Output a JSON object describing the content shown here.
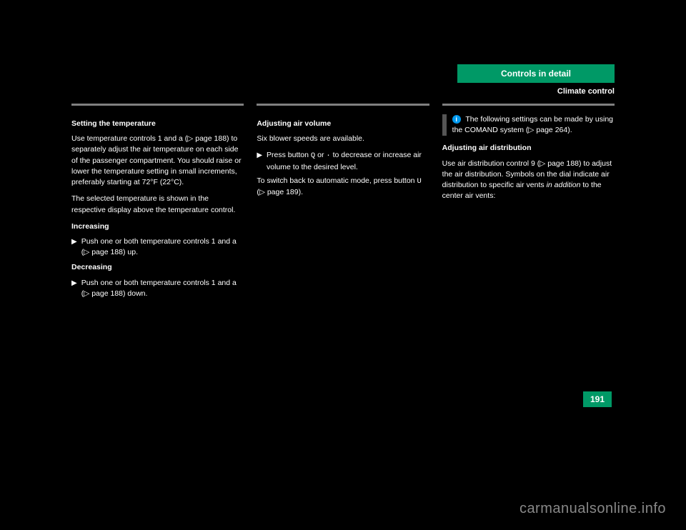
{
  "header": {
    "tab_label": "Controls in detail",
    "section_title": "Climate control"
  },
  "colors": {
    "background": "#000000",
    "tab_bg": "#009966",
    "tab_text": "#ffffff",
    "body_text": "#ffffff",
    "rule": "#808080",
    "note_bar": "#555555",
    "note_icon_bg": "#0099ee",
    "page_num_bg": "#009966",
    "watermark": "#888888"
  },
  "typography": {
    "tab_fontsize": 12,
    "body_fontsize": 10.5,
    "watermark_fontsize": 20
  },
  "columns": {
    "col1": {
      "heading": "Setting the temperature",
      "p1": "Use temperature controls 1 and a (▷ page 188) to separately adjust the air temperature on each side of the passenger compartment. You should raise or lower the temperature setting in small increments, preferably starting at 72°F (22°C).",
      "p2": "The selected temperature is shown in the respective display above the temperature control.",
      "sub1": "Increasing",
      "b1_arrow": "▶",
      "b1_text": "Push one or both temperature controls 1 and a (▷ page 188) up.",
      "sub2": "Decreasing",
      "b2_arrow": "▶",
      "b2_text": "Push one or both temperature controls 1 and a (▷ page 188) down."
    },
    "col2": {
      "heading": "Adjusting air volume",
      "sub": "Six blower speeds are available.",
      "b1_arrow": "▶",
      "b1_text_prefix": "Press button ",
      "b1_text_mono1": "Q",
      "b1_text_mid": " or ",
      "b1_text_mono2": "·",
      "b1_text_suffix": " to decrease or increase air volume to the desired level.",
      "b2_text_prefix": "To switch back to automatic mode, press button ",
      "b2_text_mono": "U",
      "b2_text_suffix": " (▷ page 189)."
    },
    "col3": {
      "note_icon": "i",
      "note_text": "The following settings can be made by using the COMAND system (▷ page 264).",
      "heading": "Adjusting air distribution",
      "p1_prefix": "Use air distribution control 9 (▷ page 188) to adjust the air distribution. Symbols on the dial indicate air distribution to specific air vents ",
      "p1_italic": "in addition ",
      "p1_suffix": "to the center air vents:"
    }
  },
  "page_number": "191",
  "watermark": "carmanualsonline.info"
}
